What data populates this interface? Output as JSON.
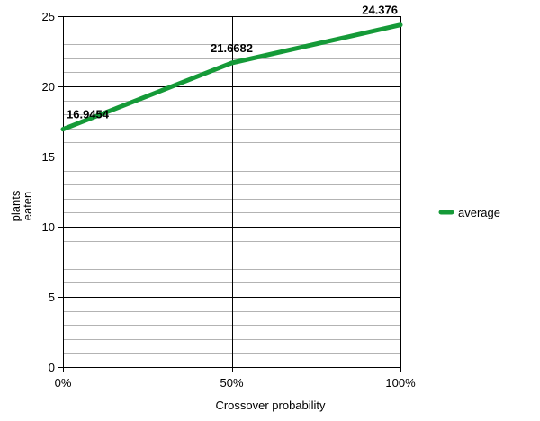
{
  "chart_data": {
    "type": "line",
    "title": "",
    "xlabel": "Crossover probability",
    "ylabel_lines": [
      "plants",
      "eaten"
    ],
    "categories": [
      "0%",
      "50%",
      "100%"
    ],
    "x": [
      0,
      50,
      100
    ],
    "ylim": [
      0,
      25
    ],
    "ymajor_step": 5,
    "yminor_step": 1,
    "yticks": [
      "0",
      "5",
      "10",
      "15",
      "20",
      "25"
    ],
    "grid": true,
    "legend_position": "right",
    "series": [
      {
        "name": "average",
        "color": "#159a38",
        "values": [
          16.9454,
          21.6682,
          24.376
        ],
        "data_labels": [
          "16.9454",
          "21.6682",
          "24.376"
        ]
      }
    ]
  }
}
